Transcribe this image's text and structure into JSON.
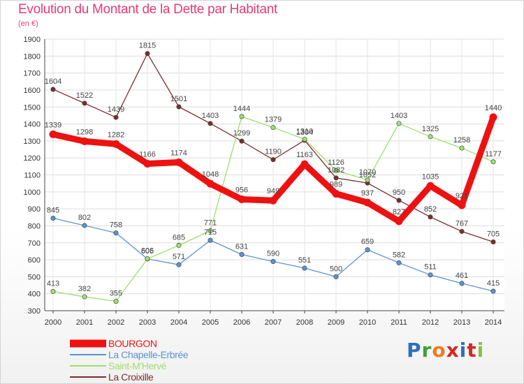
{
  "header": {
    "title": "Evolution du Montant de la Dette par Habitant",
    "subtitle": "(en €)"
  },
  "brand": {
    "letters": [
      "P",
      "r",
      "o",
      "x",
      "i",
      "t",
      "i"
    ],
    "colors": [
      "#2d6fbf",
      "#3ea035",
      "#f07a1f",
      "#d6281f",
      "#2d6fbf",
      "#d6281f",
      "#8cbe3f"
    ]
  },
  "chart_data": {
    "type": "line",
    "x": [
      "2000",
      "2001",
      "2002",
      "2003",
      "2004",
      "2005",
      "2006",
      "2007",
      "2008",
      "2009",
      "2010",
      "2011",
      "2012",
      "2013",
      "2014"
    ],
    "ylim": [
      300,
      1900
    ],
    "yticks": [
      "300",
      "400",
      "500",
      "600",
      "700",
      "800",
      "900",
      "1000",
      "1100",
      "1200",
      "1300",
      "1400",
      "1500",
      "1600",
      "1700",
      "1800",
      "1900"
    ],
    "grid": true,
    "legend_position": "bottom-left",
    "series": [
      {
        "name": "BOURGON",
        "color": "#ee1111",
        "values": [
          1339,
          1298,
          1282,
          1166,
          1174,
          1048,
          956,
          949,
          1163,
          989,
          937,
          827,
          1035,
          921,
          1440
        ],
        "labels": [
          "1339",
          "1298",
          "1282",
          "1166",
          "1174",
          "1048",
          "956",
          "949",
          "1163",
          "989",
          "937",
          "827",
          "1035",
          "921",
          "1440"
        ]
      },
      {
        "name": "La Chapelle-Erbrée",
        "color": "#5a94d0",
        "values": [
          845,
          802,
          758,
          605,
          571,
          715,
          631,
          590,
          551,
          500,
          659,
          582,
          511,
          461,
          415
        ],
        "labels": [
          "845",
          "802",
          "758",
          "605",
          "571",
          "715",
          "631",
          "590",
          "551",
          "500",
          "659",
          "582",
          "511",
          "461",
          "415"
        ]
      },
      {
        "name": "Saint-M'Hervé",
        "color": "#9ede6e",
        "values": [
          413,
          382,
          355,
          606,
          685,
          771,
          1444,
          1379,
          1310,
          1126,
          1070,
          1403,
          1325,
          1258,
          1177
        ],
        "labels": [
          "413",
          "382",
          "355",
          "606",
          "685",
          "771",
          "1444",
          "1379",
          "1310",
          "1126",
          "1070",
          "1403",
          "1325",
          "1258",
          "1177"
        ]
      },
      {
        "name": "La Croixille",
        "color": "#7b2e2e",
        "values": [
          1604,
          1522,
          1439,
          1815,
          1501,
          1403,
          1299,
          1190,
          1304,
          1082,
          1052,
          950,
          852,
          767,
          705
        ],
        "labels": [
          "1604",
          "1522",
          "1439",
          "1815",
          "1501",
          "1403",
          "1299",
          "1190",
          "1304",
          "1082",
          "1052",
          "950",
          "852",
          "767",
          "705"
        ]
      }
    ]
  }
}
